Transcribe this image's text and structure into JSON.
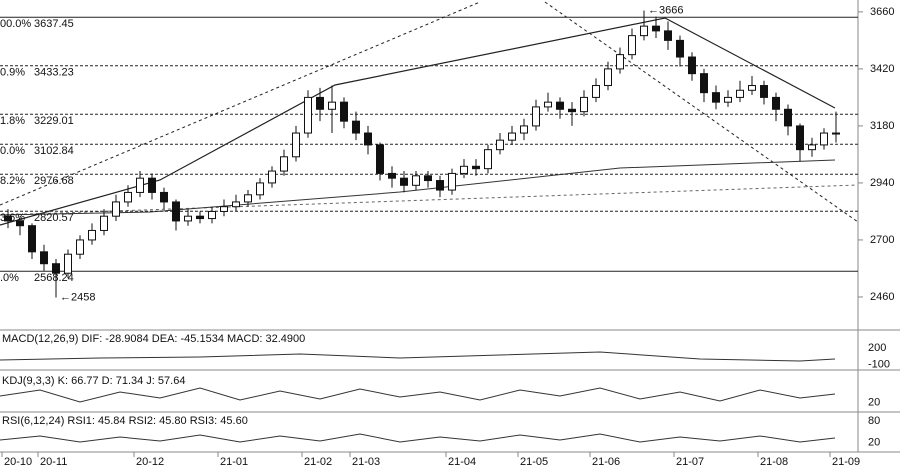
{
  "chart_data": [
    {
      "type": "candlestick",
      "categories": [
        "20-10",
        null,
        null,
        "20-11",
        null,
        null,
        null,
        null,
        null,
        null,
        null,
        "20-12",
        null,
        null,
        null,
        null,
        null,
        null,
        "21-01",
        null,
        null,
        null,
        null,
        null,
        null,
        "21-02",
        null,
        null,
        null,
        "21-03",
        null,
        null,
        null,
        null,
        null,
        null,
        null,
        "21-04",
        null,
        null,
        null,
        null,
        null,
        "21-05",
        null,
        null,
        null,
        null,
        null,
        "21-06",
        null,
        null,
        null,
        null,
        null,
        null,
        "21-07",
        null,
        null,
        null,
        null,
        null,
        null,
        "21-08",
        null,
        null,
        null,
        null,
        null,
        "21-09"
      ],
      "open": [
        2800,
        2780,
        2760,
        2650,
        2600,
        2560,
        2640,
        2700,
        2740,
        2800,
        2860,
        2900,
        2960,
        2900,
        2860,
        2780,
        2800,
        2790,
        2820,
        2840,
        2860,
        2890,
        2940,
        2990,
        3050,
        3150,
        3300,
        3250,
        3280,
        3200,
        3150,
        3100,
        2980,
        2960,
        2930,
        2970,
        2950,
        2910,
        2980,
        3010,
        3000,
        3080,
        3120,
        3150,
        3180,
        3260,
        3280,
        3250,
        3240,
        3300,
        3350,
        3420,
        3480,
        3560,
        3600,
        3580,
        3540,
        3470,
        3400,
        3320,
        3280,
        3300,
        3330,
        3350,
        3300,
        3250,
        3180,
        3080,
        3100,
        3150
      ],
      "high": [
        2830,
        2800,
        2770,
        2680,
        2620,
        2660,
        2720,
        2770,
        2830,
        2890,
        2930,
        2990,
        2980,
        2920,
        2870,
        2830,
        2820,
        2840,
        2870,
        2890,
        2910,
        2960,
        3010,
        3080,
        3180,
        3330,
        3340,
        3350,
        3300,
        3240,
        3180,
        3110,
        3010,
        2990,
        2990,
        2990,
        2970,
        3000,
        3040,
        3040,
        3100,
        3150,
        3180,
        3210,
        3290,
        3320,
        3300,
        3280,
        3330,
        3380,
        3450,
        3510,
        3590,
        3666,
        3640,
        3620,
        3560,
        3490,
        3420,
        3350,
        3330,
        3370,
        3390,
        3370,
        3320,
        3270,
        3190,
        3130,
        3170,
        3240
      ],
      "low": [
        2750,
        2720,
        2620,
        2570,
        2458,
        2540,
        2620,
        2680,
        2720,
        2780,
        2840,
        2880,
        2870,
        2830,
        2740,
        2760,
        2770,
        2770,
        2800,
        2820,
        2840,
        2870,
        2920,
        2970,
        3030,
        3130,
        3200,
        3150,
        3170,
        3120,
        3060,
        2950,
        2920,
        2900,
        2910,
        2920,
        2880,
        2890,
        2960,
        2970,
        2980,
        3060,
        3100,
        3120,
        3160,
        3240,
        3210,
        3180,
        3220,
        3280,
        3330,
        3400,
        3460,
        3540,
        3550,
        3500,
        3430,
        3370,
        3280,
        3250,
        3260,
        3280,
        3310,
        3270,
        3200,
        3140,
        3030,
        3050,
        3080,
        3110
      ],
      "close": [
        2780,
        2760,
        2650,
        2600,
        2560,
        2640,
        2700,
        2740,
        2800,
        2860,
        2900,
        2960,
        2900,
        2860,
        2780,
        2800,
        2790,
        2820,
        2840,
        2860,
        2890,
        2940,
        2990,
        3050,
        3150,
        3300,
        3250,
        3280,
        3200,
        3150,
        3100,
        2980,
        2960,
        2930,
        2970,
        2950,
        2910,
        2980,
        3010,
        3000,
        3080,
        3120,
        3150,
        3180,
        3260,
        3280,
        3250,
        3240,
        3300,
        3350,
        3420,
        3480,
        3560,
        3600,
        3580,
        3540,
        3470,
        3400,
        3320,
        3280,
        3300,
        3330,
        3350,
        3300,
        3250,
        3180,
        3080,
        3100,
        3150,
        3150
      ],
      "ylim": [
        2342,
        3710
      ],
      "yticks": [
        2460,
        2700,
        2940,
        3180,
        3420,
        3660
      ],
      "levels": [
        {
          "label": "00.0%",
          "value": 3637.45
        },
        {
          "label": "0.9%",
          "value": 3433.23
        },
        {
          "label": "1.8%",
          "value": 3229.01
        },
        {
          "label": "0.0%",
          "value": 3102.84
        },
        {
          "label": "8.2%",
          "value": 2976.68
        },
        {
          "label": "3.6%",
          "value": 2820.57
        },
        {
          "label": ".0%",
          "value": 2568.24
        }
      ],
      "annotations": [
        {
          "text": "←3666",
          "at": 53,
          "value": 3666
        },
        {
          "text": "←2458",
          "at": 4,
          "value": 2458
        }
      ]
    },
    {
      "type": "indicator",
      "title": "MACD(12,26,9) DIF: -28.9084 DEA: -45.1534 MACD: 32.4900",
      "ylim": [
        -160,
        260
      ],
      "yticks": [
        200,
        -100
      ]
    },
    {
      "type": "indicator",
      "title": "KDJ(9,3,3) K: 66.77 D: 71.34 J: 57.64",
      "ylim": [
        0,
        100
      ],
      "yticks": [
        20
      ]
    },
    {
      "type": "indicator",
      "title": "RSI(6,12,24) RSI1: 45.84 RSI2: 45.80 RSI3: 45.60",
      "ylim": [
        0,
        100
      ],
      "yticks": [
        80,
        20
      ]
    }
  ]
}
